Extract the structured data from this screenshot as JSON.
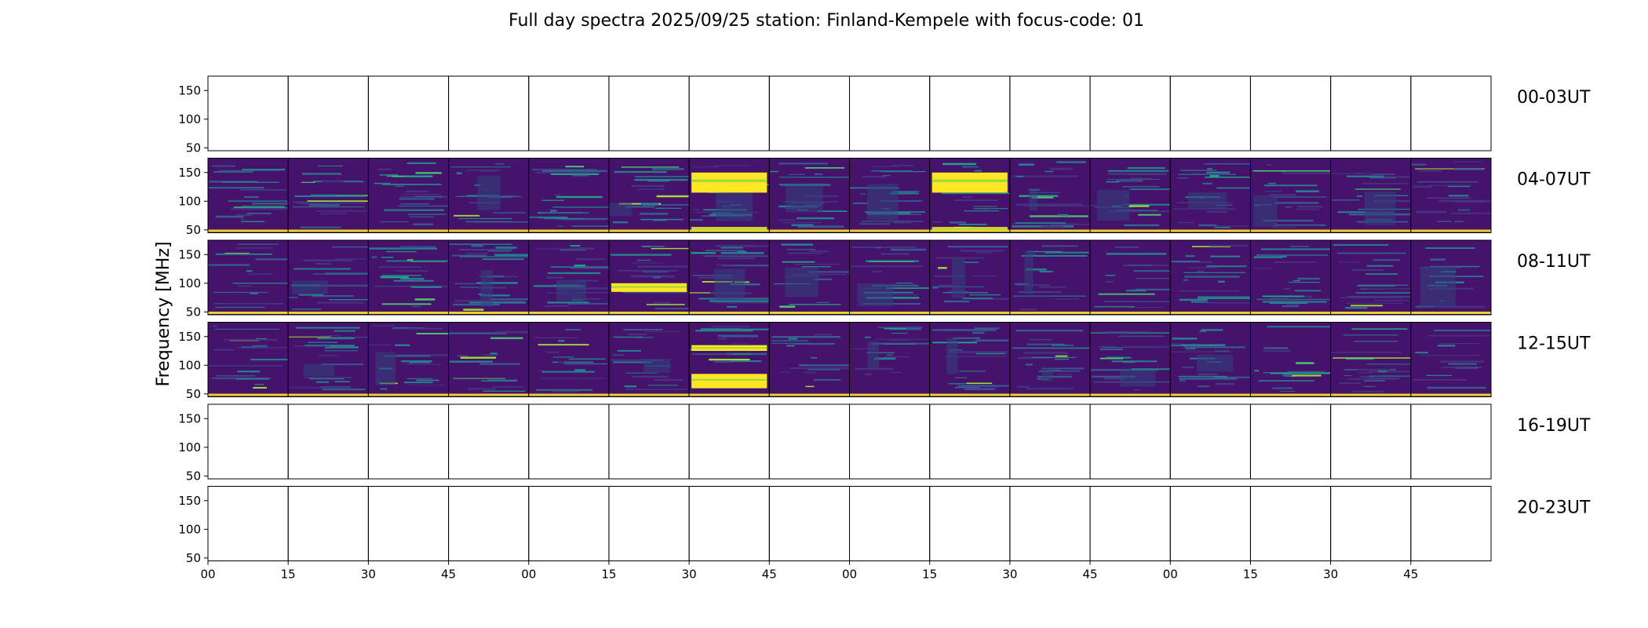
{
  "chart_data": {
    "type": "heatmap",
    "title": "Full day spectra 2025/09/25 station: Finland-Kempele with focus-code: 01",
    "ylabel": "Frequency [MHz]",
    "ylim": [
      45,
      175
    ],
    "y_ticks": [
      "50",
      "100",
      "150"
    ],
    "y_tick_values": [
      50,
      100,
      150
    ],
    "x_ticks": [
      "00",
      "15",
      "30",
      "45",
      "00",
      "15",
      "30",
      "45",
      "00",
      "15",
      "30",
      "45",
      "00",
      "15",
      "30",
      "45"
    ],
    "colormap": "viridis",
    "rows": [
      {
        "label": "00-03UT",
        "has_data": false
      },
      {
        "label": "04-07UT",
        "has_data": true
      },
      {
        "label": "08-11UT",
        "has_data": true
      },
      {
        "label": "12-15UT",
        "has_data": true
      },
      {
        "label": "16-19UT",
        "has_data": false
      },
      {
        "label": "20-23UT",
        "has_data": false
      }
    ],
    "panels_per_row": 16,
    "strong_emission_bands": [
      {
        "row": "04-07UT",
        "panel": 6,
        "freq_range_mhz": [
          115,
          150
        ]
      },
      {
        "row": "04-07UT",
        "panel": 6,
        "freq_range_mhz": [
          50,
          55
        ]
      },
      {
        "row": "04-07UT",
        "panel": 9,
        "freq_range_mhz": [
          115,
          150
        ]
      },
      {
        "row": "04-07UT",
        "panel": 9,
        "freq_range_mhz": [
          50,
          55
        ]
      },
      {
        "row": "08-11UT",
        "panel": 5,
        "freq_range_mhz": [
          85,
          100
        ]
      },
      {
        "row": "12-15UT",
        "panel": 6,
        "freq_range_mhz": [
          60,
          85
        ]
      },
      {
        "row": "12-15UT",
        "panel": 6,
        "freq_range_mhz": [
          125,
          135
        ]
      }
    ]
  }
}
